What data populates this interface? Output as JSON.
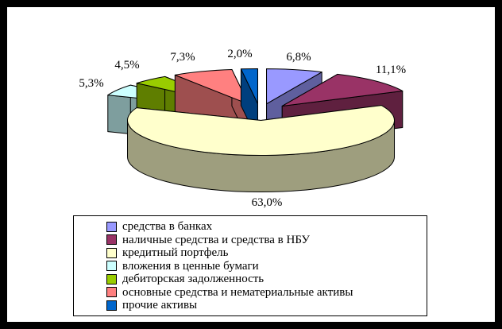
{
  "frame": {
    "border_color": "#000000",
    "canvas_background": "#FFFFFF"
  },
  "chart_data": {
    "type": "pie",
    "style": "3d-exploded",
    "title": "",
    "unit": "%",
    "start_angle_deg": 0,
    "direction": "clockwise",
    "legend_position": "bottom",
    "slices": [
      {
        "label": "средства в банках",
        "value": 6.8,
        "pct_label": "6,8%",
        "color": "#9999FF"
      },
      {
        "label": "наличные средства и средства в НБУ",
        "value": 11.1,
        "pct_label": "11,1%",
        "color": "#993366"
      },
      {
        "label": "кредитный портфель",
        "value": 63.0,
        "pct_label": "63,0%",
        "color": "#FFFFCC"
      },
      {
        "label": "вложения в ценные бумаги",
        "value": 5.3,
        "pct_label": "5,3%",
        "color": "#CCFFFF"
      },
      {
        "label": "дебиторская задолженность",
        "value": 4.5,
        "pct_label": "4,5%",
        "color": "#99CC00"
      },
      {
        "label": "основные средства и нематериальные активы",
        "value": 7.3,
        "pct_label": "7,3%",
        "color": "#FF8080"
      },
      {
        "label": "прочие активы",
        "value": 2.0,
        "pct_label": "2,0%",
        "color": "#0066CC"
      }
    ]
  }
}
